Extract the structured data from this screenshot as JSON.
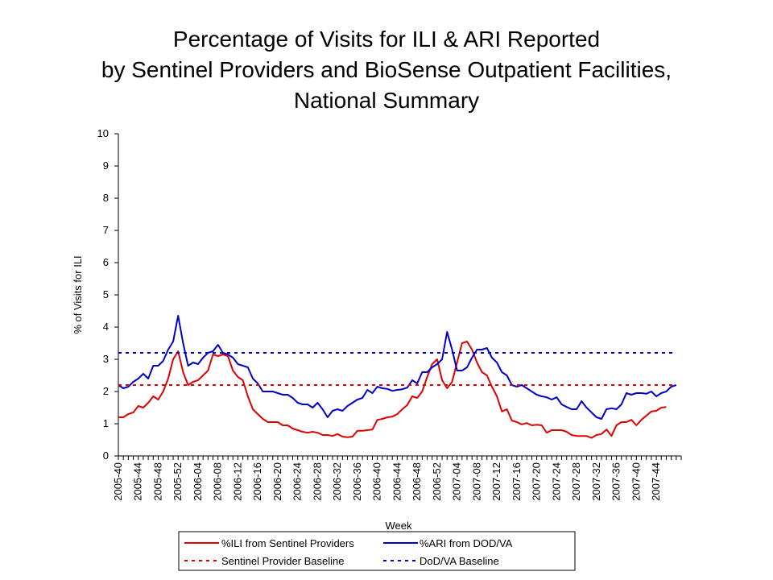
{
  "chart_data": {
    "type": "line",
    "title_lines": [
      "Percentage of Visits for ILI & ARI Reported",
      "by Sentinel Providers and BioSense Outpatient Facilities,",
      "National Summary"
    ],
    "xlabel": "Week",
    "ylabel": "% of Visits for ILI",
    "ylim": [
      0,
      10
    ],
    "yticks": [
      0,
      1,
      2,
      3,
      4,
      5,
      6,
      7,
      8,
      9,
      10
    ],
    "x_tick_labels": [
      "2005-40",
      "2005-44",
      "2005-48",
      "2005-52",
      "2006-04",
      "2006-08",
      "2006-12",
      "2006-16",
      "2006-20",
      "2006-24",
      "2006-28",
      "2006-32",
      "2006-36",
      "2006-40",
      "2006-44",
      "2006-48",
      "2006-52",
      "2007-04",
      "2007-08",
      "2007-12",
      "2007-16",
      "2007-20",
      "2007-24",
      "2007-28",
      "2007-32",
      "2007-36",
      "2007-40",
      "2007-44"
    ],
    "x_tick_every": 4,
    "grid": false,
    "legend_position": "bottom",
    "series": [
      {
        "name": "%ILI from Sentinel Providers",
        "color": "#e00000",
        "style": "solid",
        "values": [
          1.2,
          1.2,
          1.3,
          1.35,
          1.55,
          1.5,
          1.65,
          1.85,
          1.75,
          2.0,
          2.4,
          3.0,
          3.25,
          2.6,
          2.2,
          2.3,
          2.35,
          2.5,
          2.65,
          3.15,
          3.1,
          3.15,
          3.1,
          2.65,
          2.45,
          2.35,
          1.85,
          1.45,
          1.3,
          1.15,
          1.05,
          1.05,
          1.05,
          0.95,
          0.95,
          0.85,
          0.8,
          0.75,
          0.72,
          0.75,
          0.72,
          0.65,
          0.65,
          0.62,
          0.68,
          0.6,
          0.58,
          0.6,
          0.78,
          0.78,
          0.8,
          0.82,
          1.12,
          1.15,
          1.2,
          1.22,
          1.3,
          1.45,
          1.58,
          1.85,
          1.8,
          2.0,
          2.45,
          2.85,
          3.0,
          2.35,
          2.1,
          2.3,
          2.9,
          3.5,
          3.55,
          3.3,
          2.9,
          2.6,
          2.5,
          2.15,
          1.85,
          1.38,
          1.45,
          1.1,
          1.05,
          0.98,
          1.02,
          0.95,
          0.97,
          0.95,
          0.72,
          0.8,
          0.8,
          0.8,
          0.75,
          0.65,
          0.62,
          0.62,
          0.62,
          0.56,
          0.65,
          0.68,
          0.82,
          0.62,
          0.95,
          1.05,
          1.05,
          1.12,
          0.95,
          1.12,
          1.25,
          1.38,
          1.4,
          1.5,
          1.52
        ]
      },
      {
        "name": "%ARI from DOD/VA",
        "color": "#0000cc",
        "style": "solid",
        "values": [
          2.2,
          2.1,
          2.15,
          2.3,
          2.4,
          2.55,
          2.4,
          2.8,
          2.8,
          2.95,
          3.3,
          3.55,
          4.35,
          3.5,
          2.8,
          2.9,
          2.85,
          3.05,
          3.2,
          3.25,
          3.45,
          3.2,
          3.15,
          3.05,
          2.85,
          2.8,
          2.75,
          2.4,
          2.25,
          2.0,
          2.0,
          2.0,
          1.95,
          1.9,
          1.9,
          1.8,
          1.65,
          1.6,
          1.6,
          1.5,
          1.65,
          1.45,
          1.2,
          1.4,
          1.45,
          1.4,
          1.55,
          1.65,
          1.75,
          1.8,
          2.05,
          1.95,
          2.15,
          2.1,
          2.08,
          2.02,
          2.05,
          2.07,
          2.12,
          2.35,
          2.25,
          2.6,
          2.6,
          2.75,
          2.85,
          3.0,
          3.85,
          3.3,
          2.65,
          2.65,
          2.75,
          3.05,
          3.3,
          3.3,
          3.35,
          3.05,
          2.9,
          2.6,
          2.5,
          2.2,
          2.15,
          2.2,
          2.1,
          2.0,
          1.9,
          1.85,
          1.82,
          1.75,
          1.82,
          1.6,
          1.52,
          1.45,
          1.45,
          1.7,
          1.5,
          1.35,
          1.2,
          1.15,
          1.45,
          1.48,
          1.45,
          1.6,
          1.95,
          1.9,
          1.95,
          1.95,
          1.93,
          2.0,
          1.85,
          1.95,
          2.0,
          2.15,
          2.2
        ]
      },
      {
        "name": "Sentinel Provider Baseline",
        "color": "#e00000",
        "style": "dashed",
        "constant": 2.2
      },
      {
        "name": "DoD/VA Baseline",
        "color": "#0000cc",
        "style": "dashed",
        "constant": 3.2
      }
    ]
  }
}
